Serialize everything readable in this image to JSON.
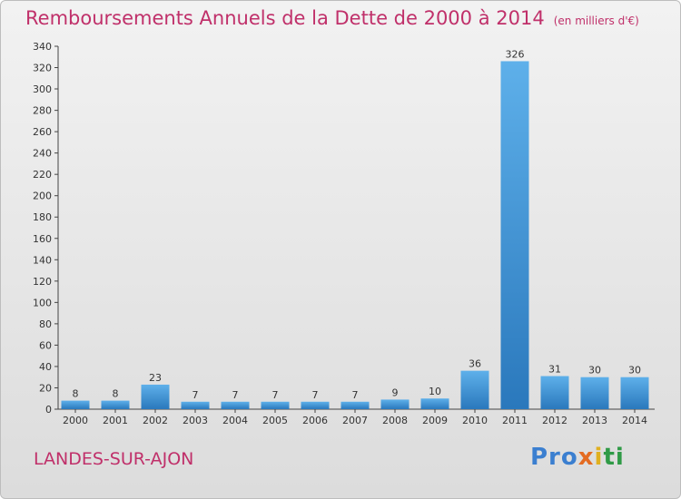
{
  "title": "Remboursements Annuels de la Dette de 2000 à 2014",
  "unit": "(en milliers d'€)",
  "place": "LANDES-SUR-AJON",
  "logo": {
    "p1": "Pro",
    "p2": "x",
    "p3": "i",
    "p4": "ti"
  },
  "colors": {
    "title": "#c0306a",
    "bar_light": "#5eb0ea",
    "bar_dark": "#2a78bc"
  },
  "chart_data": {
    "type": "bar",
    "title": "Remboursements Annuels de la Dette de 2000 à 2014",
    "subtitle": "(en milliers d'€)",
    "categories": [
      "2000",
      "2001",
      "2002",
      "2003",
      "2004",
      "2005",
      "2006",
      "2007",
      "2008",
      "2009",
      "2010",
      "2011",
      "2012",
      "2013",
      "2014"
    ],
    "values": [
      8,
      8,
      23,
      7,
      7,
      7,
      7,
      7,
      9,
      10,
      36,
      326,
      31,
      30,
      30
    ],
    "ylim": [
      0,
      340
    ],
    "yticks": [
      0,
      20,
      40,
      60,
      80,
      100,
      120,
      140,
      160,
      180,
      200,
      220,
      240,
      260,
      280,
      300,
      320,
      340
    ],
    "grid": false,
    "legend": "none"
  }
}
